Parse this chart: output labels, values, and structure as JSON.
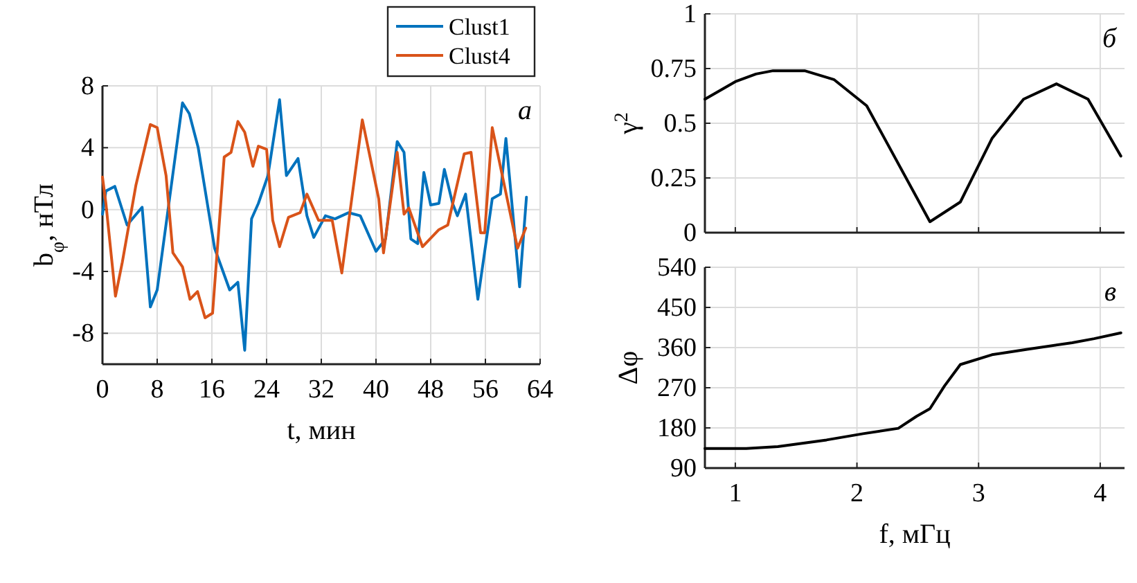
{
  "chart_data": [
    {
      "type": "line",
      "xlabel": "t,  мин",
      "ylabel": "b$_{φ}$, нТл",
      "xlim": [
        0,
        64
      ],
      "xticks": [
        0,
        8,
        16,
        24,
        32,
        40,
        48,
        56,
        64
      ],
      "ylim": [
        -10,
        8
      ],
      "yticks": [
        -8,
        -4,
        0,
        4,
        8
      ],
      "grid": true,
      "legend": "top right",
      "annotations": [
        "а"
      ],
      "series": [
        {
          "name": "Clust1",
          "color": "#0072bd",
          "x": [
            0,
            0.5,
            1.8,
            3.6,
            5.8,
            7,
            8,
            11.7,
            12.7,
            14,
            16.4,
            18.6,
            19.8,
            20.8,
            21.8,
            22.8,
            24.2,
            25.9,
            26.9,
            28.6,
            29.9,
            30.9,
            32.6,
            34,
            36,
            37.7,
            40,
            41.4,
            43.1,
            44.1,
            45.1,
            46.1,
            47,
            48,
            49.2,
            50,
            51.2,
            51.9,
            53.1,
            54.9,
            57,
            58.2,
            59,
            61,
            62
          ],
          "values": [
            -0.3,
            1.2,
            1.5,
            -1,
            0.15,
            -6.3,
            -5.2,
            6.9,
            6.2,
            4,
            -2.5,
            -5.2,
            -4.7,
            -9.1,
            -0.6,
            0.4,
            2.2,
            7.1,
            2.2,
            3.3,
            -0.4,
            -1.8,
            -0.4,
            -0.6,
            -0.2,
            -0.4,
            -2.7,
            -1.9,
            4.4,
            3.7,
            -1.9,
            -2.2,
            2.4,
            0.3,
            0.4,
            2.6,
            0.4,
            -0.4,
            1,
            -5.8,
            0.7,
            1,
            4.6,
            -5,
            0.8
          ]
        },
        {
          "name": "Clust4",
          "color": "#d95319",
          "x": [
            0,
            0.5,
            1.9,
            2.9,
            4.9,
            7,
            8,
            9.3,
            10.3,
            11.7,
            12.8,
            13.9,
            15,
            16.1,
            17.8,
            18.8,
            19.8,
            20.8,
            22,
            22.8,
            24,
            24.9,
            25.9,
            27.2,
            28.9,
            29.9,
            31.6,
            33.6,
            35,
            38,
            40.4,
            41.1,
            43.1,
            44.1,
            44.8,
            46.8,
            49.2,
            50.5,
            52.9,
            53.9,
            55.3,
            55.9,
            57,
            60.7,
            61.9
          ],
          "values": [
            2.1,
            0.4,
            -5.6,
            -3.4,
            1.6,
            5.5,
            5.3,
            2.2,
            -2.8,
            -3.7,
            -5.8,
            -5.3,
            -7,
            -6.7,
            3.4,
            3.7,
            5.7,
            5,
            2.8,
            4.1,
            3.9,
            -0.7,
            -2.4,
            -0.5,
            -0.2,
            1,
            -0.7,
            -0.7,
            -4.1,
            5.8,
            0.7,
            -2.8,
            3.7,
            -0.3,
            0.1,
            -2.4,
            -1.3,
            -1,
            3.6,
            3.7,
            -1.5,
            -1.5,
            5.3,
            -2.5,
            -1.2
          ]
        }
      ]
    },
    {
      "type": "line",
      "ylabel": "γ$^{2}$",
      "xlim": [
        0.75,
        4.2
      ],
      "xticks": [
        1,
        2,
        3,
        4
      ],
      "ylim": [
        0,
        1
      ],
      "yticks": [
        0,
        0.25,
        0.5,
        0.75,
        1
      ],
      "grid": true,
      "tick_labels": "y",
      "annotations": [
        "б"
      ],
      "series": [
        {
          "color": "#000000",
          "x": [
            0.75,
            1,
            1.17,
            1.31,
            1.57,
            1.81,
            2.08,
            2.6,
            2.85,
            3.11,
            3.37,
            3.64,
            3.9,
            4.17
          ],
          "values": [
            0.61,
            0.69,
            0.725,
            0.74,
            0.74,
            0.7,
            0.58,
            0.05,
            0.14,
            0.43,
            0.61,
            0.68,
            0.61,
            0.35
          ]
        }
      ]
    },
    {
      "type": "line",
      "xlabel": "f,  мГц",
      "ylabel": "Δφ",
      "xlim": [
        0.75,
        4.2
      ],
      "xticks": [
        1,
        2,
        3,
        4
      ],
      "ylim": [
        90,
        540
      ],
      "yticks": [
        90,
        180,
        270,
        360,
        450,
        540
      ],
      "grid": true,
      "annotations": [
        "в"
      ],
      "series": [
        {
          "color": "#000000",
          "x": [
            0.75,
            1.09,
            1.35,
            1.75,
            2.05,
            2.34,
            2.49,
            2.6,
            2.72,
            2.85,
            3.11,
            3.4,
            3.77,
            3.95,
            4.17
          ],
          "values": [
            134,
            134,
            138,
            153,
            167,
            179,
            206,
            223,
            274,
            322,
            344,
            356,
            371,
            380,
            393
          ]
        }
      ]
    }
  ]
}
